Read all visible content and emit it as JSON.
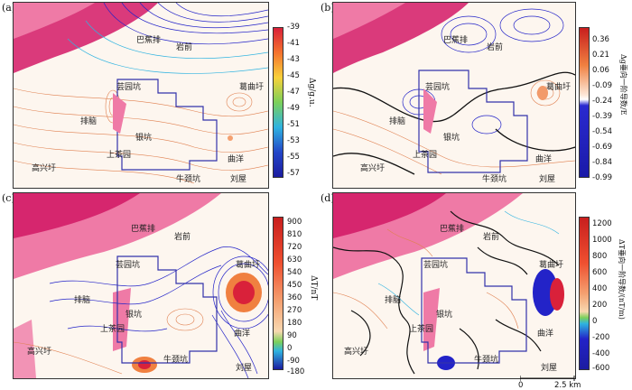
{
  "panels": [
    {
      "label": "(a)",
      "cb_label": "Δg/g.u.",
      "ticks": [
        "-39",
        "-41",
        "-43",
        "-45",
        "-47",
        "-49",
        "-51",
        "-53",
        "-55",
        "-57"
      ]
    },
    {
      "label": "(b)",
      "cb_label": "Δg垂向一阶导数/E",
      "ticks": [
        "0.36",
        "0.21",
        "0.06",
        "-0.09",
        "-0.24",
        "-0.39",
        "-0.54",
        "-0.69",
        "-0.84",
        "-0.99"
      ]
    },
    {
      "label": "(c)",
      "cb_label": "ΔT/nT",
      "ticks": [
        "900",
        "810",
        "720",
        "630",
        "540",
        "450",
        "360",
        "270",
        "180",
        "90",
        "0",
        "-90",
        "-180"
      ]
    },
    {
      "label": "(d)",
      "cb_label": "ΔT垂向一阶导数/(nT/m)",
      "ticks": [
        "1200",
        "1000",
        "800",
        "600",
        "400",
        "200",
        "0",
        "-200",
        "-400",
        "-600"
      ]
    }
  ],
  "places": {
    "a": [
      "巴蕉排",
      "岩前",
      "芸园坑",
      "葛曲圩",
      "排脑",
      "银坑",
      "上茶园",
      "高兴圩",
      "曲洋",
      "牛颈坑",
      "刘屋"
    ],
    "b": [
      "巴蕉排",
      "岩前",
      "芸园坑",
      "葛曲圩",
      "排脑",
      "银坑",
      "上茶园",
      "高兴圩",
      "曲洋",
      "牛颈坑",
      "刘屋"
    ],
    "c": [
      "巴蕉排",
      "岩前",
      "芸园坑",
      "葛曲圩",
      "排脑",
      "银坑",
      "上茶园",
      "高兴圩",
      "曲洋",
      "牛颈坑",
      "刘屋"
    ],
    "d": [
      "巴蕉排",
      "岩前",
      "芸园坑",
      "葛曲圩",
      "排脑",
      "银坑",
      "上茶园",
      "高兴圩",
      "曲洋",
      "牛颈坑",
      "刘屋"
    ]
  },
  "scale": {
    "zero": "0",
    "label": "2.5 km"
  },
  "colors": {
    "magenta": "#d6266e",
    "pink": "#ef7aa6",
    "blue": "#2323c8",
    "cyan": "#2fb3e0",
    "orange": "#e08050",
    "outline": "#3333aa"
  }
}
